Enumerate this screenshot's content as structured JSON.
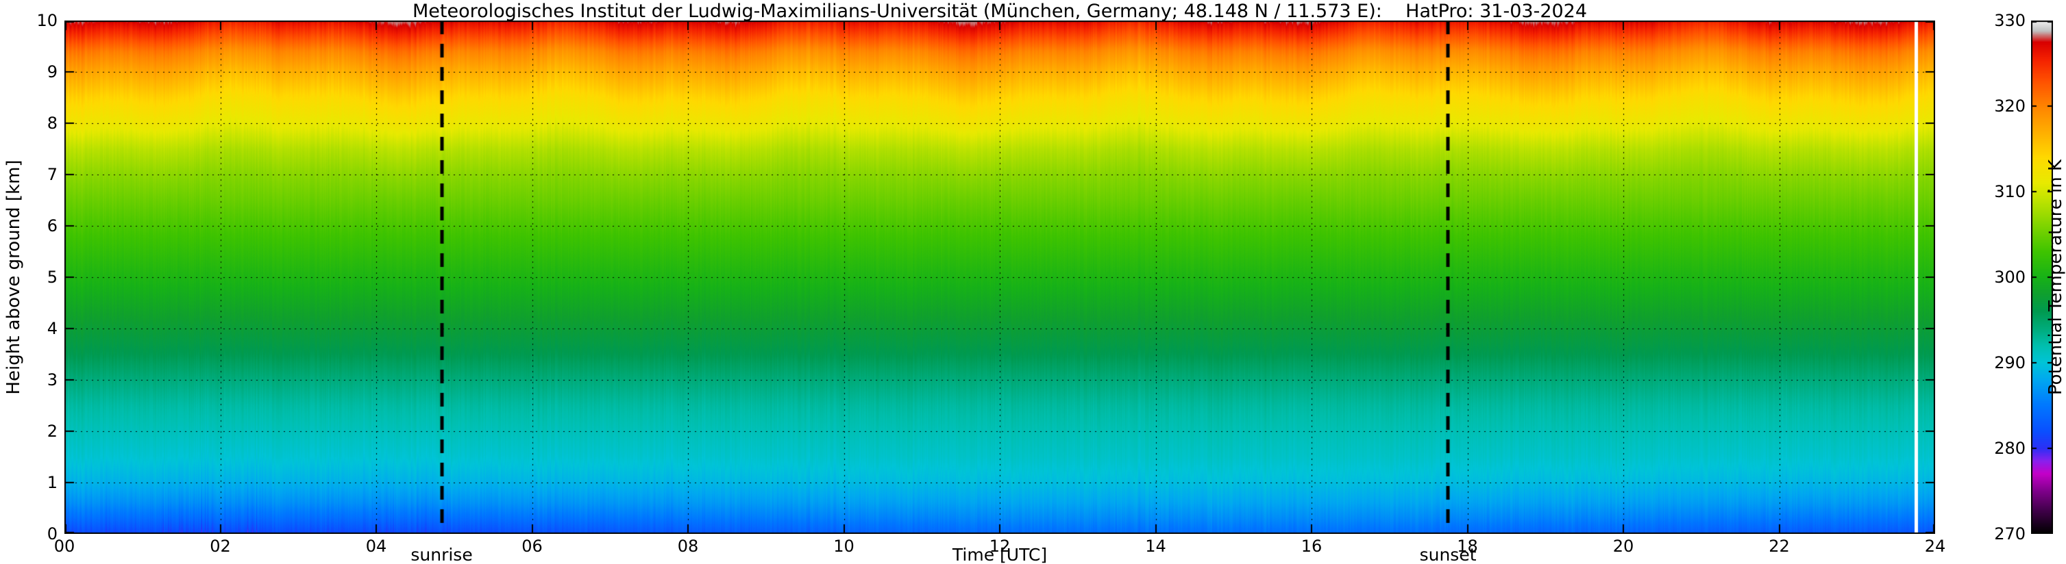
{
  "header": {
    "instrument": "HatPro",
    "date": "31-03-2024"
  },
  "chart_data": {
    "type": "heatmap",
    "title": "Meteorologisches Institut der Ludwig-Maximilians-Universität (München, Germany; 48.148 N / 11.573 E):    HatPro: 31-03-2024",
    "xlabel": "Time [UTC]",
    "ylabel": "Height above ground [km]",
    "xlim": [
      0,
      24
    ],
    "ylim": [
      0,
      10
    ],
    "x_ticks": [
      0,
      2,
      4,
      6,
      8,
      10,
      12,
      14,
      16,
      18,
      20,
      22,
      24
    ],
    "x_tick_labels": [
      "00",
      "02",
      "04",
      "06",
      "08",
      "10",
      "12",
      "14",
      "16",
      "18",
      "20",
      "22",
      "24"
    ],
    "y_ticks": [
      0,
      1,
      2,
      3,
      4,
      5,
      6,
      7,
      8,
      9,
      10
    ],
    "y_tick_labels": [
      "0",
      "1",
      "2",
      "3",
      "4",
      "5",
      "6",
      "7",
      "8",
      "9",
      "10"
    ],
    "grid": "dotted black, both axes",
    "legend_position": "right colorbar",
    "colorbar": {
      "label": "Potential Temperature in K",
      "min": 270,
      "max": 330,
      "ticks": [
        270,
        280,
        290,
        300,
        310,
        320,
        330
      ],
      "colormap_stops": [
        [
          270,
          "#000000"
        ],
        [
          272.5,
          "#3c0045"
        ],
        [
          275,
          "#80008c"
        ],
        [
          277,
          "#c400c8"
        ],
        [
          278.5,
          "#8820ee"
        ],
        [
          280,
          "#2a30f5"
        ],
        [
          282,
          "#0a50ff"
        ],
        [
          285,
          "#0078ff"
        ],
        [
          288,
          "#00a8f0"
        ],
        [
          290,
          "#00c4d8"
        ],
        [
          292,
          "#00bfae"
        ],
        [
          294,
          "#00ab7a"
        ],
        [
          296,
          "#009a50"
        ],
        [
          298,
          "#0f9f2f"
        ],
        [
          300,
          "#17b217"
        ],
        [
          303,
          "#3fc400"
        ],
        [
          306,
          "#7fd400"
        ],
        [
          309,
          "#bfe300"
        ],
        [
          311,
          "#e8ea00"
        ],
        [
          314,
          "#ffd900"
        ],
        [
          317,
          "#ffae00"
        ],
        [
          320,
          "#ff8400"
        ],
        [
          323,
          "#ff5000"
        ],
        [
          325.5,
          "#f42000"
        ],
        [
          327.5,
          "#d80000"
        ],
        [
          328.8,
          "#c0c0c0"
        ],
        [
          330,
          "#f0f0f0"
        ]
      ]
    },
    "annotations": [
      {
        "label": "sunrise",
        "time_utc": 4.84,
        "style": "vertical dashed black line"
      },
      {
        "label": "sunset",
        "time_utc": 17.75,
        "style": "vertical dashed black line"
      }
    ],
    "profile_heights_km": [
      0,
      0.3,
      0.6,
      1,
      1.5,
      2,
      2.5,
      3,
      3.5,
      4,
      4.5,
      5,
      5.5,
      6,
      6.5,
      7,
      7.5,
      8,
      8.5,
      9,
      9.4,
      9.7,
      10
    ],
    "profile_theta_K": [
      282.5,
      285,
      287,
      289,
      290.5,
      291.5,
      292.5,
      294,
      296,
      297.5,
      299,
      300.5,
      302,
      303.5,
      305,
      306.5,
      308.5,
      311.5,
      314,
      317,
      320,
      323.5,
      327
    ],
    "notes": "Potential temperature increases with height: blue (~282-288 K) below 1 km, cyan/teal (~289-295 K) 1-3.5 km, green (~296-307 K) 3.5-7.5 km, yellow (~310-316 K) 8-9 km, orange/red (~318-328 K) above 9 km; shallow cold (blue) layer near ground all day, coldest with spikes before sunrise",
    "missing_data_times_utc": [
      23.75
    ]
  }
}
